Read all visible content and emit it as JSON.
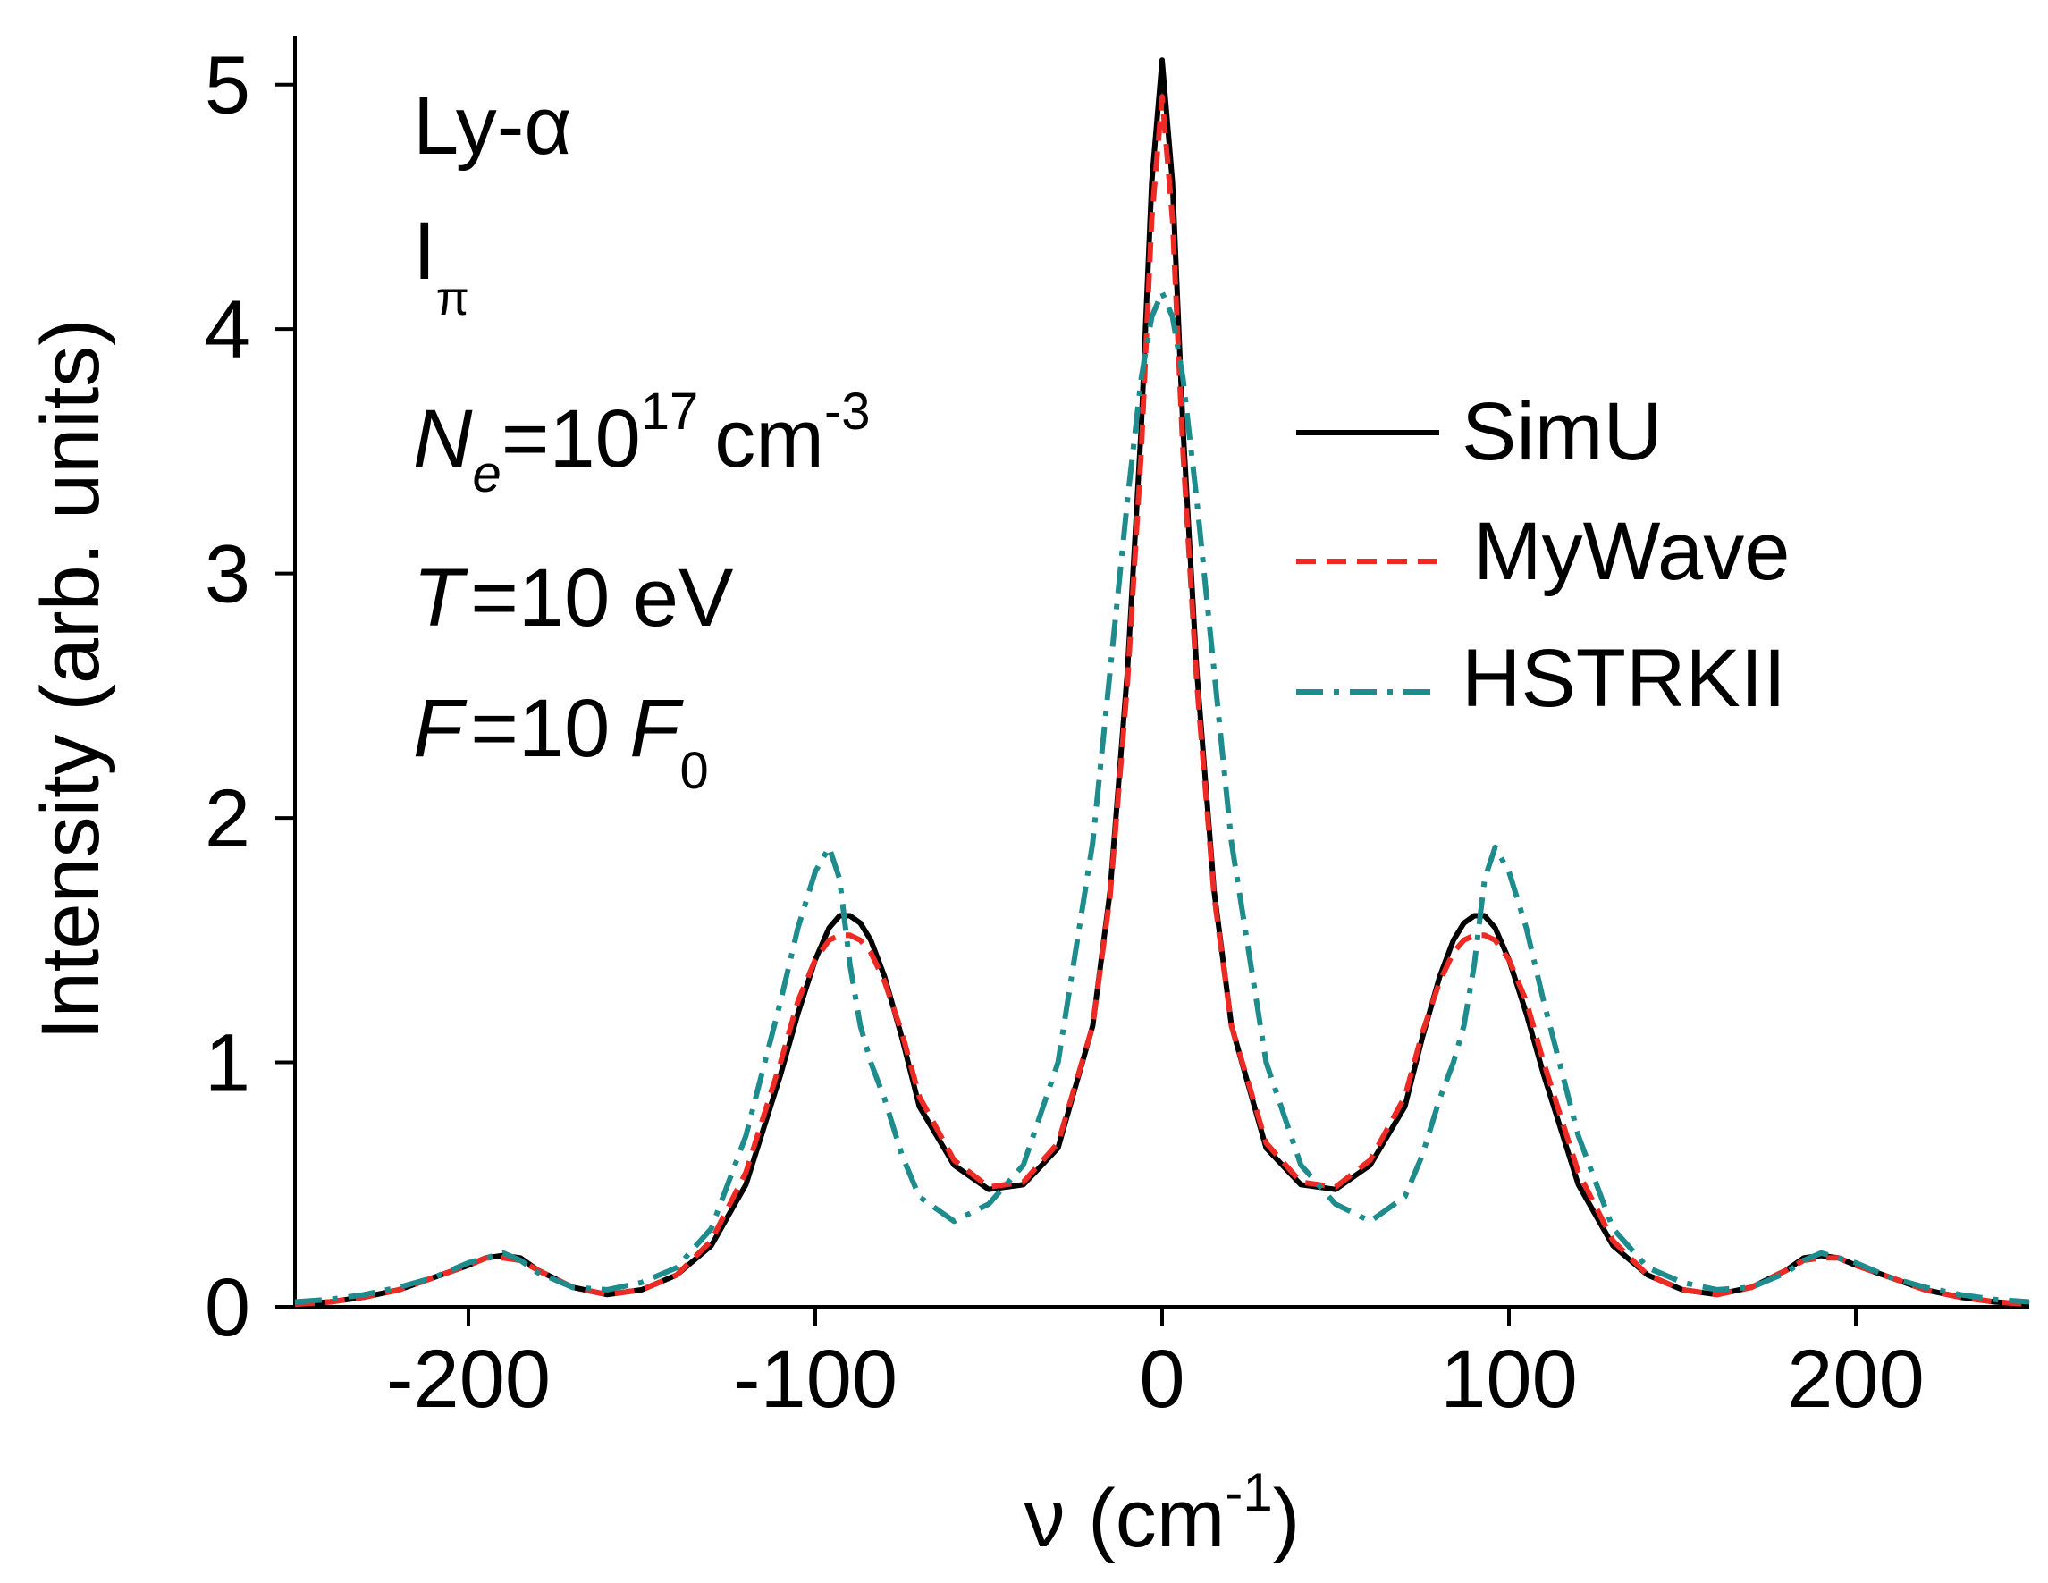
{
  "chart_data": {
    "type": "line",
    "title": "",
    "xlabel": "ν (cm",
    "xlabel_sup": "-1",
    "xlabel_end": ")",
    "ylabel": "Intensity (arb. units)",
    "xlim": [
      -250,
      250
    ],
    "ylim": [
      0,
      5.2
    ],
    "xticks": [
      -200,
      -100,
      0,
      100,
      200
    ],
    "xtick_labels": [
      "-200",
      "-100",
      "0",
      "100",
      "200"
    ],
    "yticks": [
      0,
      1,
      2,
      3,
      4,
      5
    ],
    "ytick_labels": [
      "0",
      "1",
      "2",
      "3",
      "4",
      "5"
    ],
    "grid": false,
    "legend_position": "right",
    "annotations": {
      "line": "Ly-α",
      "polarization": "I",
      "polarization_sub": "π",
      "density_sym": "N",
      "density_sub": "e",
      "density_eq": "=10",
      "density_exp": "17",
      "density_unit": "cm",
      "density_unit_exp": "-3",
      "temp_sym": "T",
      "temp_text": "=10 eV",
      "field_sym": "F",
      "field_eq": "=10",
      "field_unit": "F",
      "field_unit_sub": "0"
    },
    "series": [
      {
        "name": "SimU",
        "color": "#000000",
        "dash": "solid",
        "x": [
          -250,
          -240,
          -230,
          -220,
          -210,
          -200,
          -195,
          -190,
          -185,
          -180,
          -170,
          -160,
          -150,
          -140,
          -130,
          -120,
          -110,
          -105,
          -100,
          -96,
          -93,
          -90,
          -87,
          -84,
          -80,
          -75,
          -70,
          -60,
          -50,
          -40,
          -30,
          -20,
          -15,
          -10,
          -6,
          -3,
          0,
          3,
          6,
          10,
          15,
          20,
          30,
          40,
          50,
          60,
          70,
          75,
          80,
          84,
          87,
          90,
          93,
          96,
          100,
          105,
          110,
          120,
          130,
          140,
          150,
          160,
          170,
          180,
          185,
          190,
          195,
          200,
          210,
          220,
          230,
          240,
          250
        ],
        "values": [
          0.01,
          0.02,
          0.04,
          0.07,
          0.12,
          0.17,
          0.2,
          0.21,
          0.2,
          0.15,
          0.08,
          0.05,
          0.07,
          0.13,
          0.25,
          0.5,
          0.95,
          1.2,
          1.42,
          1.55,
          1.6,
          1.6,
          1.57,
          1.5,
          1.35,
          1.1,
          0.82,
          0.58,
          0.48,
          0.5,
          0.65,
          1.15,
          1.7,
          2.6,
          3.6,
          4.6,
          5.1,
          4.6,
          3.6,
          2.6,
          1.7,
          1.15,
          0.65,
          0.5,
          0.48,
          0.58,
          0.82,
          1.1,
          1.35,
          1.5,
          1.57,
          1.6,
          1.6,
          1.55,
          1.42,
          1.2,
          0.95,
          0.5,
          0.25,
          0.13,
          0.07,
          0.05,
          0.08,
          0.15,
          0.2,
          0.21,
          0.2,
          0.17,
          0.12,
          0.07,
          0.04,
          0.02,
          0.01
        ]
      },
      {
        "name": "MyWave",
        "color": "#ee2a24",
        "dash": "dashed",
        "x": [
          -250,
          -240,
          -230,
          -220,
          -210,
          -200,
          -195,
          -190,
          -185,
          -180,
          -170,
          -160,
          -150,
          -140,
          -130,
          -120,
          -110,
          -105,
          -100,
          -96,
          -93,
          -90,
          -87,
          -84,
          -80,
          -75,
          -70,
          -60,
          -50,
          -40,
          -30,
          -20,
          -15,
          -10,
          -6,
          -3,
          0,
          3,
          6,
          10,
          15,
          20,
          30,
          40,
          50,
          60,
          70,
          75,
          80,
          84,
          87,
          90,
          93,
          96,
          100,
          105,
          110,
          120,
          130,
          140,
          150,
          160,
          170,
          180,
          185,
          190,
          195,
          200,
          210,
          220,
          230,
          240,
          250
        ],
        "values": [
          0.01,
          0.02,
          0.04,
          0.07,
          0.12,
          0.17,
          0.2,
          0.2,
          0.19,
          0.15,
          0.08,
          0.05,
          0.07,
          0.13,
          0.27,
          0.55,
          1.0,
          1.25,
          1.42,
          1.5,
          1.52,
          1.52,
          1.5,
          1.45,
          1.33,
          1.12,
          0.86,
          0.6,
          0.49,
          0.51,
          0.67,
          1.15,
          1.68,
          2.55,
          3.5,
          4.45,
          4.95,
          4.45,
          3.5,
          2.55,
          1.68,
          1.15,
          0.67,
          0.51,
          0.49,
          0.6,
          0.86,
          1.12,
          1.33,
          1.45,
          1.5,
          1.52,
          1.52,
          1.5,
          1.42,
          1.25,
          1.0,
          0.55,
          0.27,
          0.13,
          0.07,
          0.05,
          0.08,
          0.15,
          0.19,
          0.2,
          0.2,
          0.17,
          0.12,
          0.07,
          0.04,
          0.02,
          0.01
        ]
      },
      {
        "name": "HSTRKII",
        "color": "#1e8c8c",
        "dash": "dashdot",
        "x": [
          -250,
          -240,
          -230,
          -220,
          -210,
          -200,
          -195,
          -190,
          -185,
          -180,
          -170,
          -160,
          -150,
          -140,
          -130,
          -120,
          -110,
          -105,
          -100,
          -96,
          -93,
          -90,
          -87,
          -84,
          -80,
          -75,
          -70,
          -60,
          -50,
          -40,
          -30,
          -20,
          -15,
          -10,
          -6,
          -3,
          0,
          3,
          6,
          10,
          15,
          20,
          30,
          40,
          50,
          60,
          70,
          75,
          80,
          84,
          87,
          90,
          93,
          96,
          100,
          105,
          110,
          120,
          130,
          140,
          150,
          160,
          170,
          180,
          185,
          190,
          195,
          200,
          210,
          220,
          230,
          240,
          250
        ],
        "values": [
          0.02,
          0.03,
          0.05,
          0.08,
          0.12,
          0.18,
          0.2,
          0.22,
          0.19,
          0.14,
          0.08,
          0.07,
          0.1,
          0.16,
          0.32,
          0.7,
          1.25,
          1.55,
          1.78,
          1.88,
          1.75,
          1.4,
          1.15,
          1.0,
          0.85,
          0.62,
          0.45,
          0.35,
          0.42,
          0.58,
          1.0,
          1.9,
          2.6,
          3.3,
          3.8,
          4.05,
          4.15,
          4.05,
          3.8,
          3.3,
          2.6,
          1.9,
          1.0,
          0.58,
          0.42,
          0.35,
          0.45,
          0.62,
          0.85,
          1.0,
          1.15,
          1.4,
          1.75,
          1.88,
          1.78,
          1.55,
          1.25,
          0.7,
          0.32,
          0.16,
          0.1,
          0.07,
          0.08,
          0.14,
          0.19,
          0.22,
          0.2,
          0.18,
          0.12,
          0.08,
          0.05,
          0.03,
          0.02
        ]
      }
    ]
  }
}
